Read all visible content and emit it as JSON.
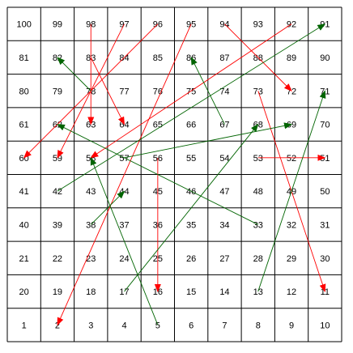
{
  "board": {
    "name": "snakes-and-ladders-board",
    "rows": 10,
    "cols": 10,
    "cells": [
      [
        100,
        99,
        98,
        97,
        96,
        95,
        94,
        93,
        92,
        91
      ],
      [
        81,
        82,
        83,
        84,
        85,
        86,
        87,
        88,
        89,
        90
      ],
      [
        80,
        79,
        78,
        77,
        76,
        75,
        74,
        73,
        72,
        71
      ],
      [
        61,
        62,
        63,
        64,
        65,
        66,
        67,
        68,
        69,
        70
      ],
      [
        60,
        59,
        58,
        57,
        56,
        55,
        54,
        53,
        52,
        51
      ],
      [
        41,
        42,
        43,
        44,
        45,
        46,
        47,
        48,
        49,
        50
      ],
      [
        40,
        39,
        38,
        37,
        36,
        35,
        34,
        33,
        32,
        31
      ],
      [
        21,
        22,
        23,
        24,
        25,
        26,
        27,
        28,
        29,
        30
      ],
      [
        20,
        19,
        18,
        17,
        16,
        15,
        14,
        13,
        12,
        11
      ],
      [
        1,
        2,
        3,
        4,
        5,
        6,
        7,
        8,
        9,
        10
      ]
    ],
    "snakes": [
      {
        "from": 98,
        "to": 63
      },
      {
        "from": 97,
        "to": 59
      },
      {
        "from": 96,
        "to": 60
      },
      {
        "from": 95,
        "to": 2
      },
      {
        "from": 94,
        "to": 72
      },
      {
        "from": 92,
        "to": 58
      },
      {
        "from": 83,
        "to": 64
      },
      {
        "from": 73,
        "to": 11
      },
      {
        "from": 56,
        "to": 16
      },
      {
        "from": 53,
        "to": 51
      }
    ],
    "ladders": [
      {
        "from": 42,
        "to": 91
      },
      {
        "from": 78,
        "to": 82
      },
      {
        "from": 67,
        "to": 86
      },
      {
        "from": 13,
        "to": 71
      },
      {
        "from": 17,
        "to": 68
      },
      {
        "from": 5,
        "to": 58
      },
      {
        "from": 33,
        "to": 62
      },
      {
        "from": 38,
        "to": 44
      },
      {
        "from": 57,
        "to": 69
      }
    ],
    "colors": {
      "snake": "#ff0000",
      "ladder": "#006400",
      "grid": "#000000",
      "text": "#000000"
    }
  }
}
